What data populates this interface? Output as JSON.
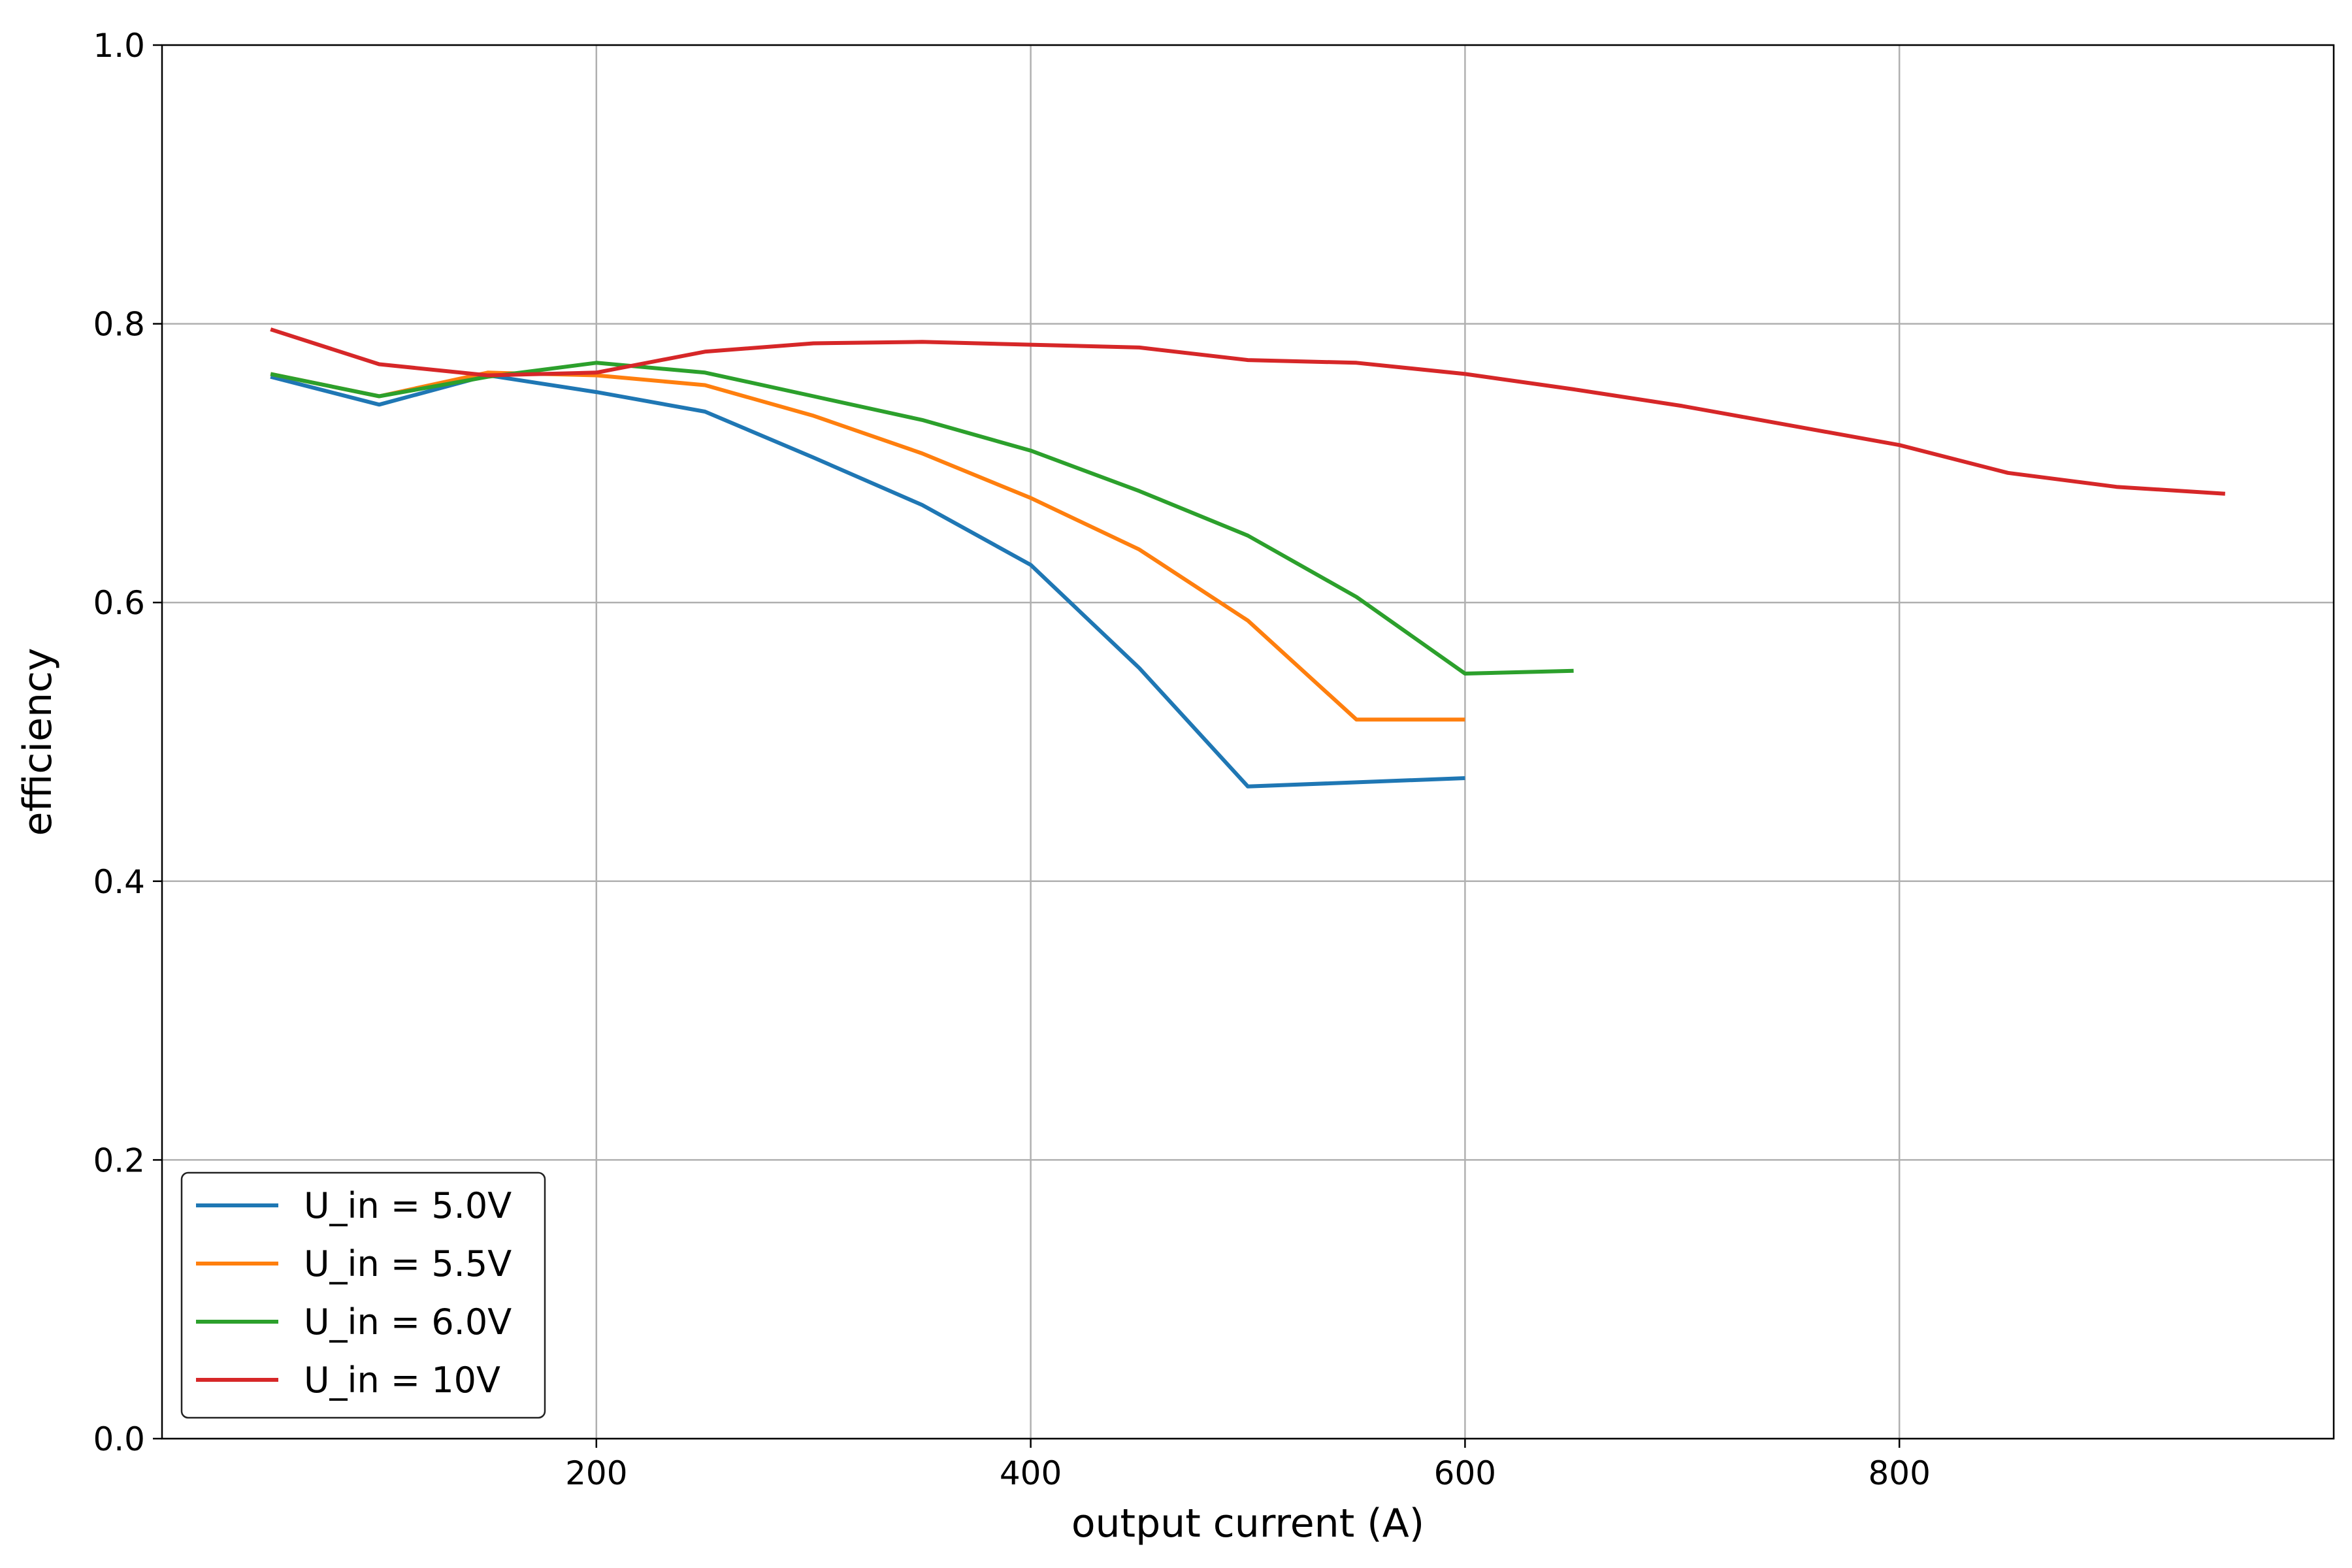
{
  "chart_data": {
    "type": "line",
    "xlabel": "output current (A)",
    "ylabel": "efficiency",
    "xlim": [
      0,
      1000
    ],
    "ylim": [
      0.0,
      1.0
    ],
    "xticks": [
      "200",
      "400",
      "600",
      "800"
    ],
    "yticks": [
      "0.0",
      "0.2",
      "0.4",
      "0.6",
      "0.8",
      "1.0"
    ],
    "grid": true,
    "legend_position": "lower-left",
    "series": [
      {
        "name": "U_in = 5.0V",
        "color": "#1f77b4",
        "x": [
          50,
          100,
          150,
          200,
          250,
          300,
          350,
          400,
          450,
          500,
          600
        ],
        "y": [
          0.762,
          0.742,
          0.763,
          0.751,
          0.737,
          0.704,
          0.67,
          0.627,
          0.553,
          0.468,
          0.474
        ]
      },
      {
        "name": "U_in = 5.5V",
        "color": "#ff7f0e",
        "x": [
          50,
          100,
          150,
          200,
          250,
          300,
          350,
          400,
          450,
          500,
          550,
          600
        ],
        "y": [
          0.764,
          0.748,
          0.765,
          0.763,
          0.756,
          0.734,
          0.707,
          0.675,
          0.638,
          0.587,
          0.516,
          0.516
        ]
      },
      {
        "name": "U_in = 6.0V",
        "color": "#2ca02c",
        "x": [
          50,
          100,
          150,
          200,
          250,
          300,
          350,
          400,
          450,
          500,
          550,
          600,
          650
        ],
        "y": [
          0.764,
          0.748,
          0.762,
          0.772,
          0.765,
          0.748,
          0.731,
          0.709,
          0.68,
          0.648,
          0.604,
          0.549,
          0.551
        ]
      },
      {
        "name": "U_in = 10V",
        "color": "#d62728",
        "x": [
          50,
          100,
          150,
          200,
          250,
          300,
          350,
          400,
          450,
          500,
          550,
          600,
          650,
          700,
          750,
          800,
          850,
          900,
          950
        ],
        "y": [
          0.796,
          0.771,
          0.763,
          0.765,
          0.78,
          0.786,
          0.787,
          0.785,
          0.783,
          0.774,
          0.772,
          0.764,
          0.753,
          0.741,
          0.727,
          0.713,
          0.693,
          0.683,
          0.678
        ]
      }
    ]
  }
}
